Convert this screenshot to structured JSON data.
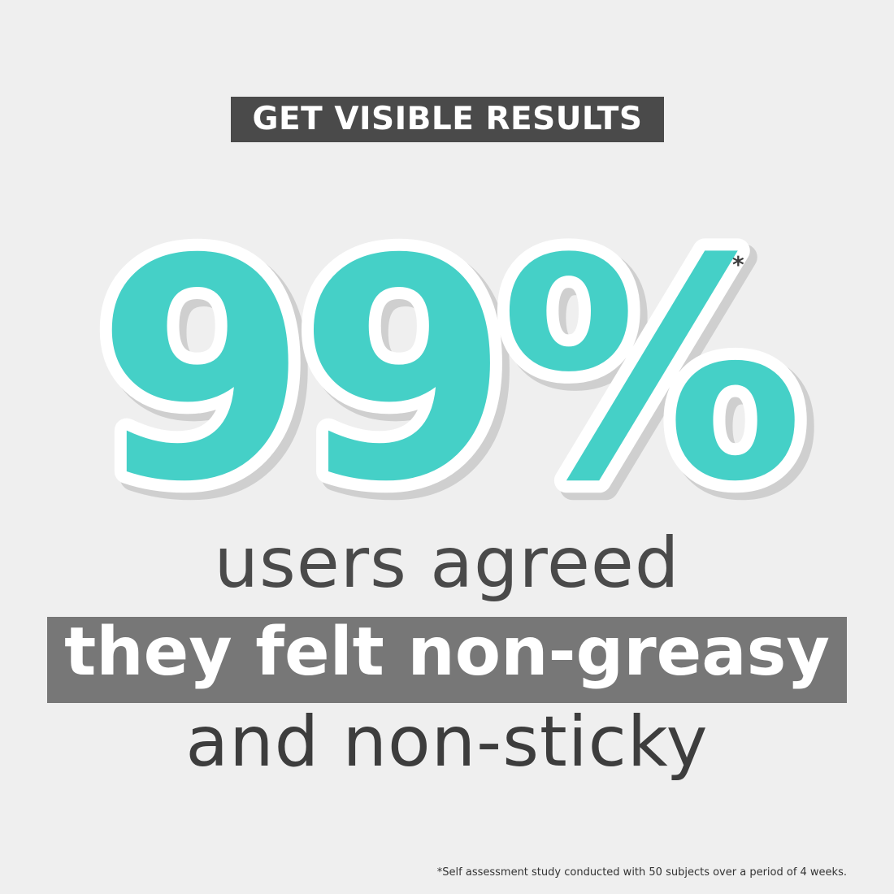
{
  "headline": {
    "label": "GET VISIBLE RESULTS"
  },
  "stat": {
    "value": "99%",
    "marker": "*"
  },
  "claim": {
    "line1": "users agreed",
    "line2": "they felt non-greasy",
    "line3": "and non-sticky"
  },
  "footnote": {
    "text": "*Self assessment study conducted with 50 subjects over a period of 4 weeks."
  },
  "colors": {
    "accent": "#45d0c7",
    "badge": "#4a4a4a",
    "band": "#777777",
    "background": "#efefef"
  }
}
